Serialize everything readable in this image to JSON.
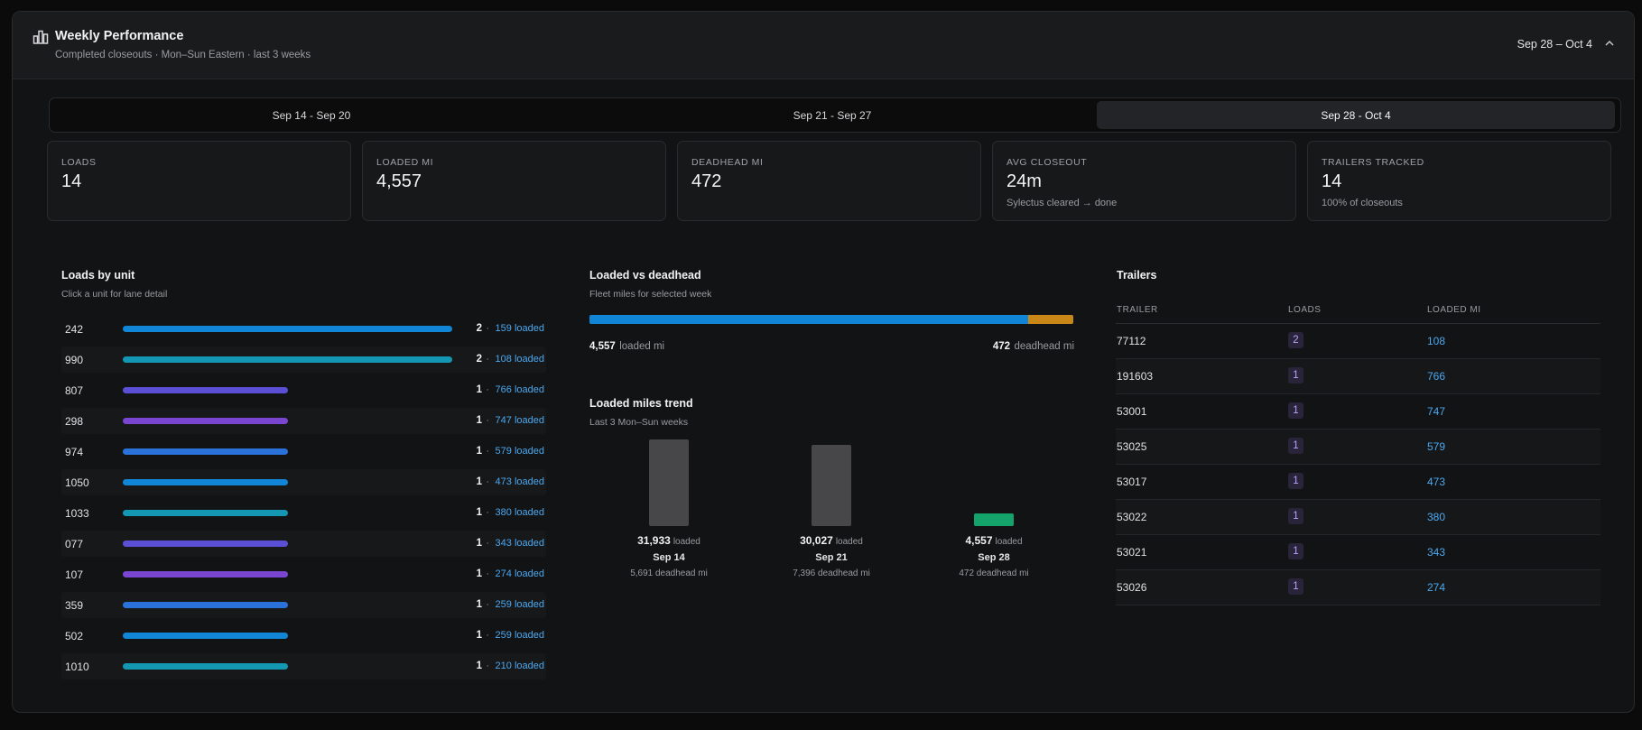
{
  "header": {
    "title": "Weekly Performance",
    "subtitle": "Completed closeouts · Mon–Sun Eastern · last 3 weeks",
    "range": "Sep 28 – Oct 4",
    "icon": "bar-chart-icon",
    "toggle_icon": "chevron-up-icon"
  },
  "tabs": [
    {
      "label": "Sep 14 - Sep 20",
      "active": false
    },
    {
      "label": "Sep 21 - Sep 27",
      "active": false
    },
    {
      "label": "Sep 28 - Oct 4",
      "active": true
    }
  ],
  "kpis": [
    {
      "label": "LOADS",
      "value": "14",
      "note": ""
    },
    {
      "label": "LOADED MI",
      "value": "4,557",
      "note": ""
    },
    {
      "label": "DEADHEAD MI",
      "value": "472",
      "note": ""
    },
    {
      "label": "AVG CLOSEOUT",
      "value": "24m",
      "note": "Sylectus cleared → done"
    },
    {
      "label": "TRAILERS TRACKED",
      "value": "14",
      "note": "100% of closeouts"
    }
  ],
  "loads_by_unit": {
    "title": "Loads by unit",
    "subtitle": "Click a unit for lane detail",
    "separator": "·",
    "max_loads": 2,
    "units": [
      {
        "unit": "242",
        "loads": 2,
        "loaded": "159 loaded",
        "color": "#1186d6"
      },
      {
        "unit": "990",
        "loads": 2,
        "loaded": "108 loaded",
        "color": "#1397b3"
      },
      {
        "unit": "807",
        "loads": 1,
        "loaded": "766 loaded",
        "color": "#5b4fd6"
      },
      {
        "unit": "298",
        "loads": 1,
        "loaded": "747 loaded",
        "color": "#7a45d1"
      },
      {
        "unit": "974",
        "loads": 1,
        "loaded": "579 loaded",
        "color": "#2a72d9"
      },
      {
        "unit": "1050",
        "loads": 1,
        "loaded": "473 loaded",
        "color": "#1186d6"
      },
      {
        "unit": "1033",
        "loads": 1,
        "loaded": "380 loaded",
        "color": "#1397b3"
      },
      {
        "unit": "077",
        "loads": 1,
        "loaded": "343 loaded",
        "color": "#5b4fd6"
      },
      {
        "unit": "107",
        "loads": 1,
        "loaded": "274 loaded",
        "color": "#7a45d1"
      },
      {
        "unit": "359",
        "loads": 1,
        "loaded": "259 loaded",
        "color": "#2a72d9"
      },
      {
        "unit": "502",
        "loads": 1,
        "loaded": "259 loaded",
        "color": "#1186d6"
      },
      {
        "unit": "1010",
        "loads": 1,
        "loaded": "210 loaded",
        "color": "#1397b3"
      }
    ]
  },
  "loaded_vs_deadhead": {
    "title": "Loaded vs deadhead",
    "subtitle": "Fleet miles for selected week",
    "loaded_value": "4,557",
    "loaded_label": "loaded mi",
    "deadhead_value": "472",
    "deadhead_label": "deadhead mi",
    "loaded_mi": 4557,
    "deadhead_mi": 472,
    "loaded_color": "#1186d6",
    "deadhead_color": "#c88716"
  },
  "trend": {
    "title": "Loaded miles trend",
    "subtitle": "Last 3 Mon–Sun weeks",
    "loaded_suffix": "loaded",
    "max_mi": 31933,
    "weeks": [
      {
        "week": "Sep 14",
        "loaded_text": "31,933",
        "loaded_mi": 31933,
        "deadhead": "5,691 deadhead mi",
        "selected": false
      },
      {
        "week": "Sep 21",
        "loaded_text": "30,027",
        "loaded_mi": 30027,
        "deadhead": "7,396 deadhead mi",
        "selected": false
      },
      {
        "week": "Sep 28",
        "loaded_text": "4,557",
        "loaded_mi": 4557,
        "deadhead": "472 deadhead mi",
        "selected": true
      }
    ],
    "bar_color": "#474749",
    "selected_color": "#14a36a"
  },
  "trailers": {
    "title": "Trailers",
    "columns": [
      "TRAILER",
      "LOADS",
      "LOADED MI"
    ],
    "rows": [
      {
        "trailer": "77112",
        "loads": "2",
        "loaded_mi": "108"
      },
      {
        "trailer": "191603",
        "loads": "1",
        "loaded_mi": "766"
      },
      {
        "trailer": "53001",
        "loads": "1",
        "loaded_mi": "747"
      },
      {
        "trailer": "53025",
        "loads": "1",
        "loaded_mi": "579"
      },
      {
        "trailer": "53017",
        "loads": "1",
        "loaded_mi": "473"
      },
      {
        "trailer": "53022",
        "loads": "1",
        "loaded_mi": "380"
      },
      {
        "trailer": "53021",
        "loads": "1",
        "loaded_mi": "343"
      },
      {
        "trailer": "53026",
        "loads": "1",
        "loaded_mi": "274"
      }
    ]
  }
}
